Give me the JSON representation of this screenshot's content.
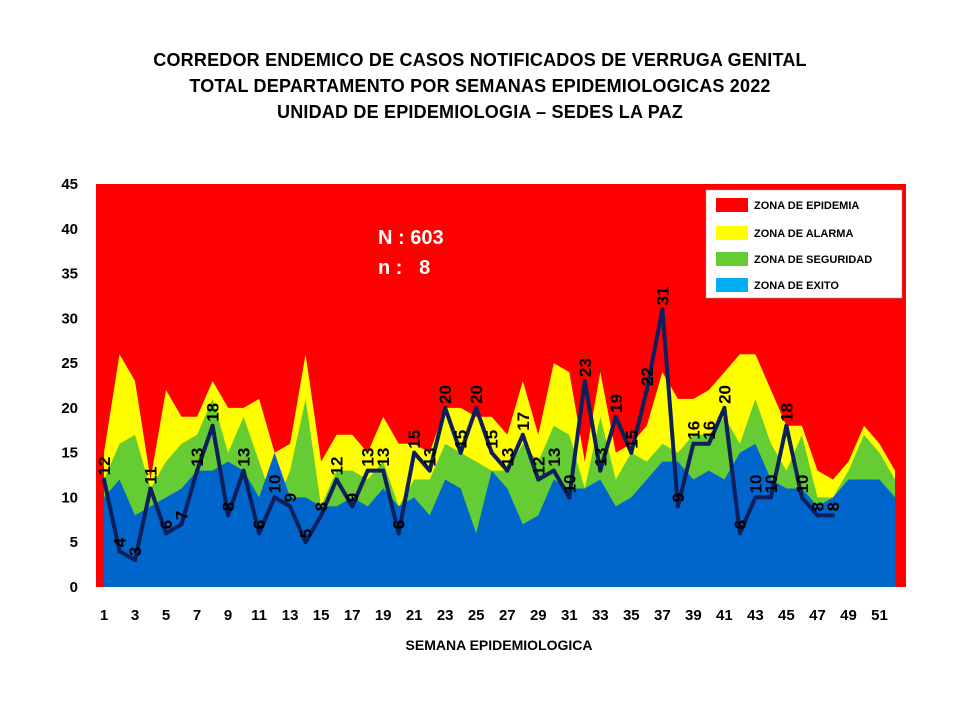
{
  "title_lines": [
    "CORREDOR ENDEMICO  DE CASOS NOTIFICADOS  DE VERRUGA  GENITAL",
    "TOTAL DEPARTAMENTO  POR SEMANAS EPIDEMIOLOGICAS  2022",
    "UNIDAD  DE EPIDEMIOLOGIA  – SEDES LA PAZ"
  ],
  "annotations": {
    "n_total": "N : 603",
    "n_week": "n :   8"
  },
  "colors": {
    "epidemia": "#ff0000",
    "alarma": "#ffff00",
    "seguridad": "#66cc33",
    "exito": "#0066cc",
    "line": "#0d1f5c"
  },
  "chart_data": {
    "type": "area",
    "xlabel": "SEMANA EPIDEMIOLOGICA",
    "ylabel": "",
    "ylim": [
      0,
      45
    ],
    "yticks": [
      0,
      5,
      10,
      15,
      20,
      25,
      30,
      35,
      40,
      45
    ],
    "xticks": [
      1,
      3,
      5,
      7,
      9,
      11,
      13,
      15,
      17,
      19,
      21,
      23,
      25,
      27,
      29,
      31,
      33,
      35,
      37,
      39,
      41,
      43,
      45,
      47,
      49,
      51
    ],
    "x_range": [
      1,
      52
    ],
    "legend": {
      "placement": "top-right",
      "items": [
        {
          "label": "ZONA DE EPIDEMIA",
          "color": "#ff0000"
        },
        {
          "label": "ZONA DE ALARMA",
          "color": "#ffff00"
        },
        {
          "label": "ZONA DE  SEGURIDAD",
          "color": "#66cc33"
        },
        {
          "label": "ZONA DE  EXITO",
          "color": "#00b0f0"
        }
      ]
    },
    "series": [
      {
        "name": "ZONA DE EPIDEMIA",
        "zone": "epidemia",
        "values": [
          45,
          45,
          45,
          45,
          45,
          45,
          45,
          45,
          45,
          45,
          45,
          45,
          45,
          45,
          45,
          45,
          45,
          45,
          45,
          45,
          45,
          45,
          45,
          45,
          45,
          45,
          45,
          45,
          45,
          45,
          45,
          45,
          45,
          45,
          45,
          45,
          45,
          45,
          45,
          45,
          45,
          45,
          45,
          45,
          45,
          45,
          45,
          45,
          45,
          45,
          45,
          45
        ]
      },
      {
        "name": "ZONA DE ALARMA",
        "zone": "alarma",
        "values": [
          15,
          26,
          23,
          12,
          22,
          19,
          19,
          23,
          20,
          20,
          21,
          15,
          16,
          26,
          14,
          17,
          17,
          15,
          19,
          16,
          16,
          15,
          20,
          20,
          19,
          19,
          17,
          23,
          17,
          25,
          24,
          14,
          24,
          15,
          16,
          18,
          24,
          21,
          21,
          22,
          24,
          26,
          26,
          22,
          18,
          18,
          13,
          12,
          14,
          18,
          16,
          13
        ]
      },
      {
        "name": "ZONA DE  SEGURIDAD",
        "zone": "seguridad",
        "values": [
          12,
          16,
          17,
          11,
          14,
          16,
          17,
          21,
          15,
          19,
          14,
          9,
          13,
          21,
          9,
          13,
          13,
          12,
          14,
          9,
          12,
          12,
          16,
          15,
          14,
          13,
          13,
          16,
          14,
          18,
          17,
          11,
          19,
          12,
          15,
          14,
          16,
          15,
          17,
          17,
          19,
          16,
          21,
          16,
          13,
          17,
          10,
          10,
          13,
          17,
          15,
          12
        ]
      },
      {
        "name": "ZONA DE  EXITO",
        "zone": "exito",
        "values": [
          10,
          12,
          8,
          9,
          10,
          11,
          13,
          13,
          14,
          13,
          10,
          15,
          10,
          10,
          9,
          9,
          10,
          9,
          11,
          9,
          10,
          8,
          12,
          11,
          6,
          13,
          11,
          7,
          8,
          12,
          11,
          11,
          12,
          9,
          10,
          12,
          14,
          14,
          12,
          13,
          12,
          15,
          16,
          12,
          11,
          11,
          9,
          10,
          12,
          12,
          12,
          10
        ]
      },
      {
        "name": "",
        "zone": "cases",
        "x": [
          1,
          2,
          3,
          4,
          5,
          6,
          7,
          8,
          9,
          10,
          11,
          12,
          13,
          14,
          15,
          16,
          17,
          18,
          19,
          20,
          21,
          22,
          23,
          24,
          25,
          26,
          27,
          28,
          29,
          30,
          31,
          32,
          33,
          34,
          35,
          36,
          37,
          38,
          39,
          40,
          41,
          42,
          43,
          44,
          45,
          46,
          47,
          48
        ],
        "values": [
          12,
          4,
          3,
          11,
          6,
          7,
          13,
          18,
          8,
          13,
          6,
          10,
          9,
          5,
          8,
          12,
          9,
          13,
          13,
          6,
          15,
          13,
          20,
          15,
          20,
          15,
          13,
          17,
          12,
          13,
          10,
          23,
          13,
          19,
          15,
          22,
          31,
          9,
          16,
          16,
          20,
          6,
          10,
          10,
          18,
          10,
          8,
          8
        ],
        "labels": [
          "12",
          "4",
          "3",
          "11",
          "6",
          "7",
          "13",
          "18",
          "8",
          "13",
          "6",
          "10",
          "9",
          "5",
          "8",
          "12",
          "9",
          "13",
          "13",
          "6",
          "15",
          "13",
          "20",
          "15",
          "20",
          "15",
          "13",
          "17",
          "12",
          "13",
          "10",
          "23",
          "13",
          "19",
          "15",
          "22",
          "31",
          "9",
          "16",
          "16",
          "20",
          "6",
          "10",
          "10",
          "18",
          "10",
          "8",
          "8"
        ]
      }
    ]
  }
}
